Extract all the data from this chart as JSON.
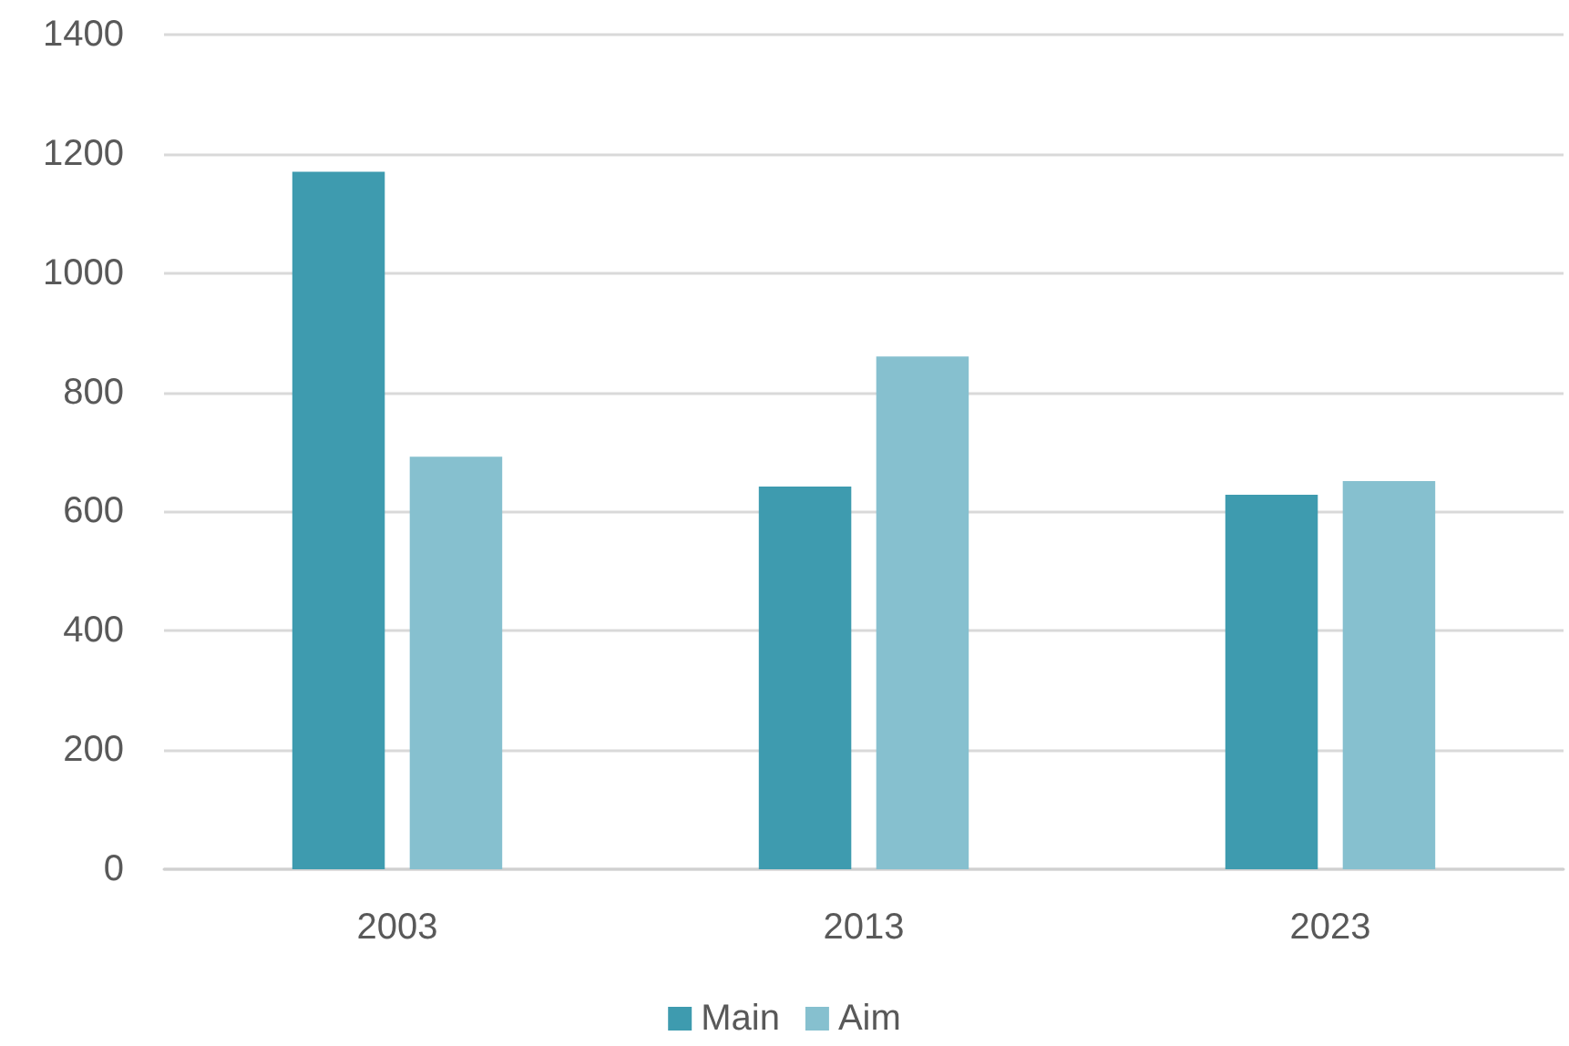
{
  "chart_data": {
    "type": "bar",
    "categories": [
      "2003",
      "2013",
      "2023"
    ],
    "series": [
      {
        "name": "Main",
        "color": "#3e9baf",
        "values": [
          1170,
          642,
          628
        ]
      },
      {
        "name": "Aim",
        "color": "#86c0cf",
        "values": [
          692,
          860,
          651
        ]
      }
    ],
    "ylim": [
      0,
      1400
    ],
    "yticks": [
      0,
      200,
      400,
      600,
      800,
      1000,
      1200,
      1400
    ],
    "grid": "y",
    "legend": "bottom"
  }
}
